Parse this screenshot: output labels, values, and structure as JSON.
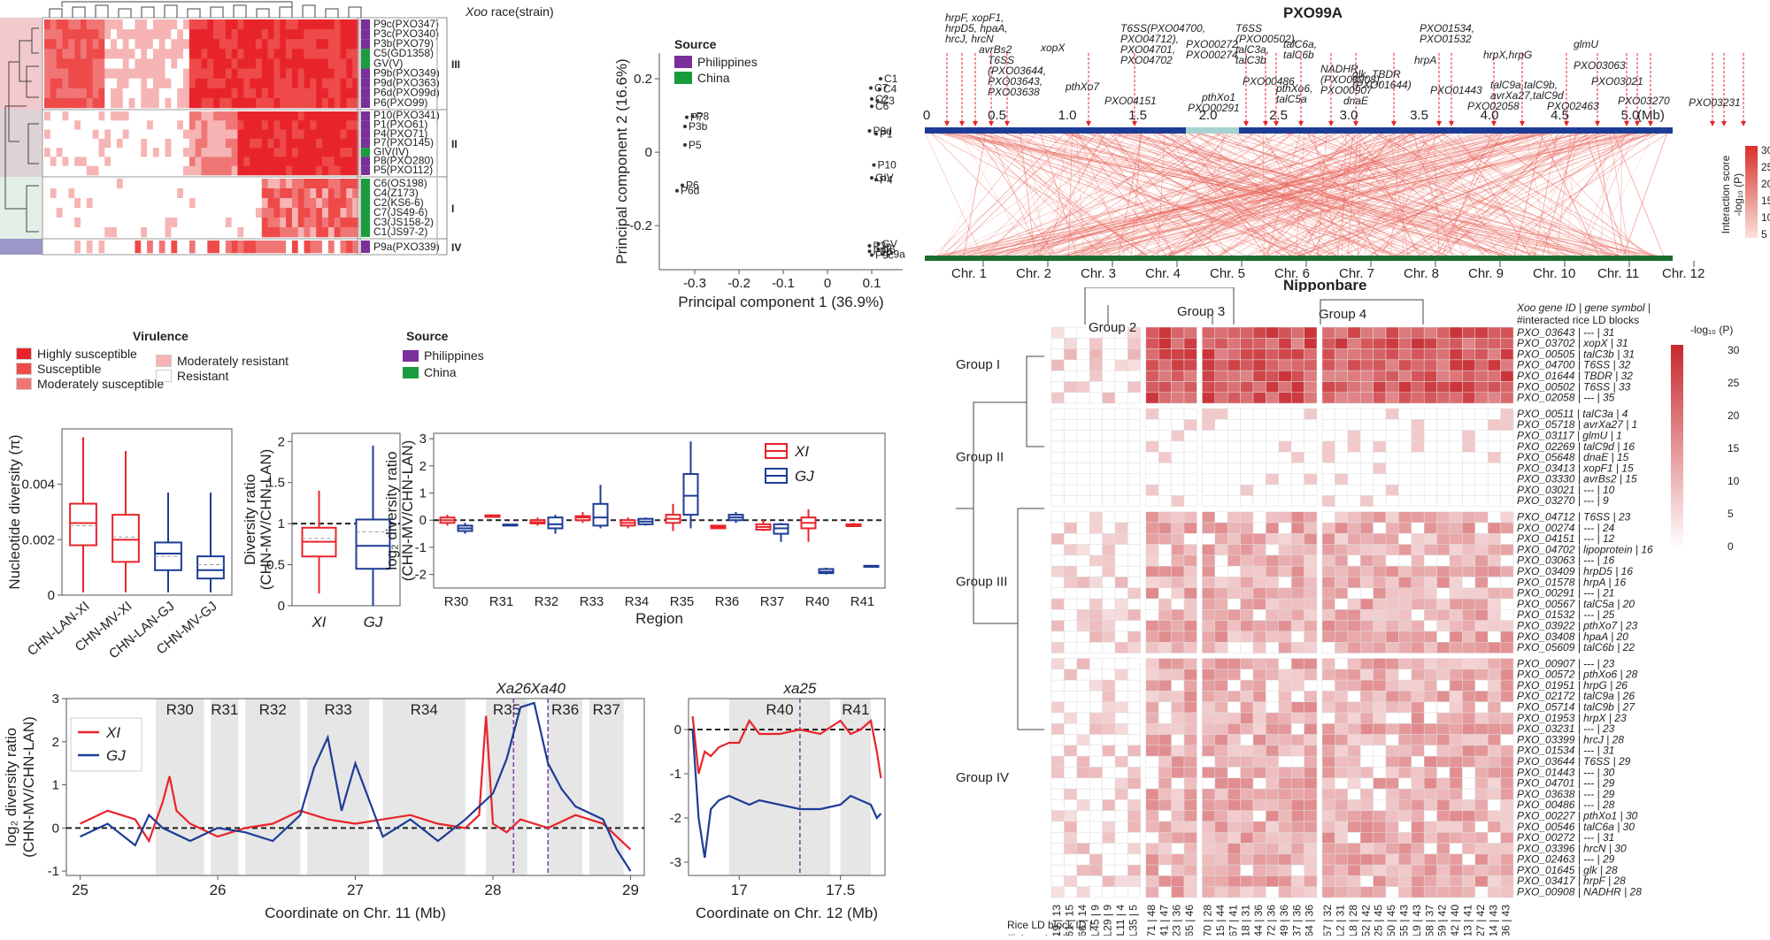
{
  "heatmap_panel": {
    "header": "race(strain)",
    "header_italic": "Xoo",
    "strains_III": [
      "P9c(PXO347)",
      "P3c(PXO340)",
      "P3b(PXO79)",
      "C5(GD1358)",
      "GV(V)",
      "P9b(PXO349)",
      "P9d(PXO363)",
      "P6d(PXO99d)",
      "P6(PXO99)"
    ],
    "strains_II": [
      "P10(PXO341)",
      "P1(PXO61)",
      "P4(PXO71)",
      "P7(PXO145)",
      "GIV(IV)",
      "P8(PXO280)",
      "P5(PXO112)"
    ],
    "strains_I": [
      "C6(OS198)",
      "C4(Z173)",
      "C2(KS6-6)",
      "C7(JS49-6)",
      "C3(JS158-2)",
      "C1(JS97-2)"
    ],
    "strains_IV": [
      "P9a(PXO339)"
    ],
    "groups": [
      "III",
      "II",
      "I",
      "IV"
    ],
    "virulence_title": "Virulence",
    "virulence_legend": [
      "Highly susceptible",
      "Susceptible",
      "Moderately susceptible",
      "Moderately resistant",
      "Resistant"
    ],
    "virulence_colors": [
      "#e8242b",
      "#ee4a4a",
      "#f07676",
      "#f6b4b4",
      "#ffffff"
    ],
    "source_title": "Source",
    "source_legend": [
      "Philippines",
      "China"
    ],
    "source_colors": [
      "#7a2f9a",
      "#1a9c3e"
    ]
  },
  "pca": {
    "legend_title": "Source",
    "legend": [
      "Philippines",
      "China"
    ],
    "xlabel": "Principal component 1 (36.9%)",
    "ylabel": "Principal component 2 (16.6%)",
    "xticks": [
      "-0.3",
      "-0.2",
      "-0.1",
      "0",
      "0.1"
    ],
    "yticks": [
      "0.2",
      "0",
      "-0.2"
    ]
  },
  "chart_data": [
    {
      "type": "scatter",
      "xlabel": "Principal component 1 (36.9%)",
      "ylabel": "Principal component 2 (16.6%)",
      "xlim": [
        -0.38,
        0.17
      ],
      "ylim": [
        -0.32,
        0.27
      ],
      "points": [
        {
          "label": "P7",
          "x": -0.318,
          "y": 0.095,
          "source": "Philippines"
        },
        {
          "label": "P8",
          "x": -0.305,
          "y": 0.098,
          "source": "Philippines"
        },
        {
          "label": "P3b",
          "x": -0.322,
          "y": 0.07,
          "source": "Philippines"
        },
        {
          "label": "P5",
          "x": -0.322,
          "y": 0.02,
          "source": "Philippines"
        },
        {
          "label": "P6",
          "x": -0.328,
          "y": -0.09,
          "source": "Philippines"
        },
        {
          "label": "P6d",
          "x": -0.34,
          "y": -0.105,
          "source": "Philippines"
        },
        {
          "label": "P9d",
          "x": 0.095,
          "y": 0.058,
          "source": "Philippines"
        },
        {
          "label": "P1",
          "x": 0.11,
          "y": 0.05,
          "source": "Philippines"
        },
        {
          "label": "C1",
          "x": 0.12,
          "y": 0.2,
          "source": "China"
        },
        {
          "label": "C7",
          "x": 0.098,
          "y": 0.175,
          "source": "China"
        },
        {
          "label": "C4",
          "x": 0.118,
          "y": 0.172,
          "source": "China"
        },
        {
          "label": "C2",
          "x": 0.1,
          "y": 0.145,
          "source": "China"
        },
        {
          "label": "C3",
          "x": 0.113,
          "y": 0.14,
          "source": "China"
        },
        {
          "label": "C6",
          "x": 0.1,
          "y": 0.125,
          "source": "China"
        },
        {
          "label": "P10",
          "x": 0.105,
          "y": -0.035,
          "source": "Philippines"
        },
        {
          "label": "GIV",
          "x": 0.1,
          "y": -0.07,
          "source": "China"
        },
        {
          "label": "P4",
          "x": 0.11,
          "y": -0.075,
          "source": "Philippines"
        },
        {
          "label": "GV",
          "x": 0.115,
          "y": -0.25,
          "source": "China"
        },
        {
          "label": "P3c",
          "x": 0.095,
          "y": -0.255,
          "source": "Philippines"
        },
        {
          "label": "C5",
          "x": 0.115,
          "y": -0.265,
          "source": "China"
        },
        {
          "label": "P9b",
          "x": 0.095,
          "y": -0.27,
          "source": "Philippines"
        },
        {
          "label": "P9c",
          "x": 0.1,
          "y": -0.28,
          "source": "Philippines"
        },
        {
          "label": "P9a",
          "x": 0.125,
          "y": -0.278,
          "source": "Philippines"
        }
      ]
    },
    {
      "type": "box",
      "ylabel": "Nucleotide diversity (π)",
      "categories": [
        "CHN-LAN-XI",
        "CHN-MV-XI",
        "CHN-LAN-GJ",
        "CHN-MV-GJ"
      ],
      "ylim": [
        0,
        0.006
      ],
      "boxes": [
        {
          "min": 0.0001,
          "q1": 0.0018,
          "median": 0.0026,
          "q3": 0.0033,
          "max": 0.0057,
          "mean": 0.0025
        },
        {
          "min": 0.0001,
          "q1": 0.0012,
          "median": 0.002,
          "q3": 0.0029,
          "max": 0.0052,
          "mean": 0.0021
        },
        {
          "min": 0.0001,
          "q1": 0.0009,
          "median": 0.0015,
          "q3": 0.0019,
          "max": 0.0037,
          "mean": 0.0014
        },
        {
          "min": 0.0001,
          "q1": 0.0006,
          "median": 0.0009,
          "q3": 0.0014,
          "max": 0.0037,
          "mean": 0.0011
        }
      ],
      "colors": [
        "#e8242b",
        "#e8242b",
        "#1d3c96",
        "#1d3c96"
      ]
    },
    {
      "type": "box",
      "ylabel": "Diversity ratio (CHN-MV/CHN-LAN)",
      "categories": [
        "XI",
        "GJ"
      ],
      "ylim": [
        0,
        2.1
      ],
      "boxes": [
        {
          "min": 0.15,
          "q1": 0.6,
          "median": 0.78,
          "q3": 0.95,
          "max": 1.4,
          "mean": 0.82
        },
        {
          "min": 0.0,
          "q1": 0.45,
          "median": 0.73,
          "q3": 1.05,
          "max": 1.95,
          "mean": 0.9
        }
      ]
    },
    {
      "type": "box",
      "ylabel": "log2 diversity ratio (CHN-MV/CHN-LAN)",
      "xlabel": "Region",
      "categories": [
        "R30",
        "R31",
        "R32",
        "R33",
        "R34",
        "R35",
        "R36",
        "R37",
        "R40",
        "R41"
      ],
      "legend": [
        "XI",
        "GJ"
      ],
      "ylim": [
        -2.5,
        3.2
      ],
      "series": [
        {
          "name": "XI",
          "boxes": [
            {
              "min": -0.2,
              "q1": -0.1,
              "median": 0.0,
              "q3": 0.1,
              "max": 0.2
            },
            {
              "min": 0.1,
              "q1": 0.12,
              "median": 0.15,
              "q3": 0.18,
              "max": 0.2
            },
            {
              "min": -0.2,
              "q1": -0.12,
              "median": -0.08,
              "q3": 0.0,
              "max": 0.1
            },
            {
              "min": -0.1,
              "q1": 0.0,
              "median": 0.1,
              "q3": 0.15,
              "max": 0.3
            },
            {
              "min": -0.3,
              "q1": -0.2,
              "median": -0.1,
              "q3": 0.0,
              "max": 0.1
            },
            {
              "min": -0.4,
              "q1": -0.1,
              "median": 0.05,
              "q3": 0.2,
              "max": 0.6
            },
            {
              "min": -0.3,
              "q1": -0.3,
              "median": -0.25,
              "q3": -0.2,
              "max": -0.2
            },
            {
              "min": -0.4,
              "q1": -0.35,
              "median": -0.25,
              "q3": -0.15,
              "max": 0.0
            },
            {
              "min": -0.8,
              "q1": -0.3,
              "median": -0.1,
              "q3": 0.1,
              "max": 0.4
            },
            {
              "min": -0.25,
              "q1": -0.22,
              "median": -0.18,
              "q3": -0.15,
              "max": -0.1
            }
          ]
        },
        {
          "name": "GJ",
          "boxes": [
            {
              "min": -0.5,
              "q1": -0.4,
              "median": -0.3,
              "q3": -0.2,
              "max": -0.1
            },
            {
              "min": -0.2,
              "q1": -0.2,
              "median": -0.18,
              "q3": -0.16,
              "max": -0.15
            },
            {
              "min": -0.5,
              "q1": -0.3,
              "median": -0.15,
              "q3": 0.1,
              "max": 0.2
            },
            {
              "min": -0.3,
              "q1": -0.2,
              "median": 0.1,
              "q3": 0.6,
              "max": 1.3
            },
            {
              "min": -0.2,
              "q1": -0.15,
              "median": -0.05,
              "q3": 0.05,
              "max": 0.1
            },
            {
              "min": -0.3,
              "q1": 0.2,
              "median": 0.9,
              "q3": 1.7,
              "max": 2.9
            },
            {
              "min": -0.1,
              "q1": 0.0,
              "median": 0.1,
              "q3": 0.2,
              "max": 0.3
            },
            {
              "min": -0.8,
              "q1": -0.5,
              "median": -0.3,
              "q3": -0.15,
              "max": -0.1
            },
            {
              "min": -2.0,
              "q1": -1.95,
              "median": -1.9,
              "q3": -1.8,
              "max": -1.75
            },
            {
              "min": -1.75,
              "q1": -1.72,
              "median": -1.7,
              "q3": -1.68,
              "max": -1.65
            }
          ]
        }
      ]
    },
    {
      "type": "line",
      "ylabel": "log2 diversity ratio (CHN-MV/CHN-LAN)",
      "xlabel": "Coordinate on Chr. 11 (Mb)",
      "xlim": [
        24.9,
        29.1
      ],
      "ylim": [
        -1.1,
        3.0
      ],
      "legend": [
        "XI",
        "GJ"
      ],
      "regions": [
        {
          "name": "R30",
          "start": 25.55,
          "end": 25.9
        },
        {
          "name": "R31",
          "start": 25.95,
          "end": 26.15
        },
        {
          "name": "R32",
          "start": 26.2,
          "end": 26.6
        },
        {
          "name": "R33",
          "start": 26.65,
          "end": 27.1
        },
        {
          "name": "R34",
          "start": 27.2,
          "end": 27.8
        },
        {
          "name": "R35",
          "start": 27.95,
          "end": 28.25
        },
        {
          "name": "R36",
          "start": 28.4,
          "end": 28.65
        },
        {
          "name": "R37",
          "start": 28.7,
          "end": 28.95
        }
      ],
      "markers": [
        {
          "name": "Xa26",
          "x": 28.15
        },
        {
          "name": "Xa40",
          "x": 28.4
        }
      ],
      "series": [
        {
          "name": "XI",
          "x": [
            25.0,
            25.2,
            25.4,
            25.5,
            25.6,
            25.65,
            25.7,
            25.8,
            26.0,
            26.2,
            26.4,
            26.6,
            26.8,
            27.0,
            27.2,
            27.4,
            27.6,
            27.8,
            27.9,
            27.95,
            28.0,
            28.1,
            28.2,
            28.4,
            28.6,
            28.8,
            28.9,
            29.0
          ],
          "y": [
            0.1,
            0.4,
            0.2,
            -0.3,
            0.6,
            1.2,
            0.4,
            0.1,
            -0.2,
            0.0,
            0.1,
            0.4,
            0.2,
            0.1,
            0.2,
            0.3,
            0.1,
            0.0,
            0.3,
            2.6,
            0.1,
            -0.1,
            0.2,
            0.0,
            0.3,
            0.1,
            -0.2,
            -0.5
          ]
        },
        {
          "name": "GJ",
          "x": [
            25.0,
            25.2,
            25.4,
            25.5,
            25.6,
            25.8,
            26.0,
            26.2,
            26.4,
            26.6,
            26.7,
            26.8,
            26.9,
            27.0,
            27.2,
            27.4,
            27.6,
            27.8,
            28.0,
            28.1,
            28.2,
            28.3,
            28.4,
            28.5,
            28.6,
            28.8,
            28.9,
            29.0
          ],
          "y": [
            -0.2,
            0.1,
            -0.4,
            0.3,
            0.0,
            -0.3,
            0.0,
            -0.1,
            -0.3,
            0.3,
            1.4,
            2.1,
            0.4,
            1.5,
            -0.2,
            0.2,
            -0.3,
            0.2,
            0.8,
            1.6,
            2.8,
            2.9,
            1.5,
            0.9,
            0.5,
            0.2,
            -0.5,
            -1.0
          ]
        }
      ]
    },
    {
      "type": "line",
      "xlabel": "Coordinate on Chr. 12 (Mb)",
      "xlim": [
        16.75,
        17.72
      ],
      "ylim": [
        -3.3,
        0.7
      ],
      "regions": [
        {
          "name": "R40",
          "start": 16.95,
          "end": 17.45
        },
        {
          "name": "R41",
          "start": 17.5,
          "end": 17.65
        }
      ],
      "markers": [
        {
          "name": "xa25",
          "x": 17.3
        }
      ],
      "series": [
        {
          "name": "XI",
          "x": [
            16.77,
            16.8,
            16.83,
            16.86,
            16.9,
            16.95,
            17.0,
            17.05,
            17.1,
            17.2,
            17.3,
            17.4,
            17.5,
            17.55,
            17.6,
            17.65,
            17.68,
            17.7
          ],
          "y": [
            0.3,
            -1.0,
            -0.5,
            -0.6,
            -0.4,
            -0.3,
            -0.3,
            0.2,
            -0.1,
            -0.1,
            0.0,
            -0.1,
            0.2,
            -0.1,
            0.0,
            0.2,
            -0.5,
            -1.1
          ]
        },
        {
          "name": "GJ",
          "x": [
            16.77,
            16.8,
            16.83,
            16.86,
            16.9,
            16.95,
            17.0,
            17.05,
            17.1,
            17.2,
            17.3,
            17.4,
            17.5,
            17.55,
            17.6,
            17.65,
            17.68,
            17.7
          ],
          "y": [
            0.0,
            -2.0,
            -2.9,
            -1.8,
            -1.6,
            -1.5,
            -1.6,
            -1.7,
            -1.6,
            -1.7,
            -1.8,
            -1.8,
            -1.7,
            -1.5,
            -1.6,
            -1.7,
            -2.0,
            -1.9
          ]
        }
      ]
    }
  ],
  "pxo99a": {
    "title": "PXO99A",
    "bottom_title": "Nipponbare",
    "mb_label": "(Mb)",
    "mb_ticks": [
      "0",
      "0.5",
      "1.0",
      "1.5",
      "2.0",
      "2.5",
      "3.0",
      "3.5",
      "4.0",
      "4.5",
      "5.0"
    ],
    "chromosomes": [
      "Chr. 1",
      "Chr. 2",
      "Chr. 3",
      "Chr. 4",
      "Chr. 5",
      "Chr. 6",
      "Chr. 7",
      "Chr. 8",
      "Chr. 9",
      "Chr. 10",
      "Chr. 11",
      "Chr. 12"
    ],
    "gene_labels": [
      "hrpF, xopF1,",
      "hrpD5, hpaA,",
      "hrcJ, hrcN",
      "avrBs2",
      "T6SS",
      "(PXO03644,",
      "PXO03643,",
      "PXO03638",
      "xopX",
      "pthXo7",
      "PXO04151",
      "T6SS(PXO04700,",
      "PXO04712),",
      "PXO04701,",
      "PXO04702",
      "PXO00272,",
      "PXO00274",
      "PXO00291",
      "pthXo1",
      "T6SS",
      "(PXO00502),",
      "talC3a,",
      "talC3b",
      "PXO00486",
      "talC6a,",
      "talC6b",
      "pthXo6,",
      "talC5a",
      "NADHR",
      "(PXO00908),",
      "PXO00907",
      "glk, TBDR",
      "(PXO01644)",
      "dnaE",
      "PXO01534,",
      "PXO01532",
      "hrpA",
      "PXO01443",
      "PXO02058",
      "hrpX,hrpG",
      "talC9a,talC9b,",
      "avrXa27,talC9d",
      "PXO02463",
      "glmU",
      "PXO03063",
      "PXO03021",
      "PXO03270",
      "PXO03231"
    ],
    "scale_title": "Interaction score",
    "scale_sub": "-log",
    "scale_ticks": [
      "30",
      "25",
      "20",
      "15",
      "10",
      "5"
    ]
  },
  "bigheat": {
    "groups_top": [
      "Group 1",
      "Group 2",
      "Group 3",
      "Group 4"
    ],
    "groups_left": [
      "Group I",
      "Group II",
      "Group III",
      "Group IV"
    ],
    "right_header": [
      "Xoo gene ID | gene symbol |",
      "#interacted rice LD blocks"
    ],
    "scale_title": "-log",
    "scale_ticks": [
      "30",
      "25",
      "20",
      "15",
      "10",
      "5",
      "0"
    ],
    "bottom_header": [
      "Rice LD block ID |",
      "#interacted Xoo genes"
    ],
    "genes_I": [
      "PXO_03643 | --- | 31",
      "PXO_03702 | xopX | 31",
      "PXO_00505 | talC3b | 31",
      "PXO_04700 | T6SS | 32",
      "PXO_01644 | TBDR | 32",
      "PXO_00502 | T6SS | 33",
      "PXO_02058 | --- | 35"
    ],
    "genes_II": [
      "PXO_00511 | talC3a | 4",
      "PXO_05718 | avrXa27 | 1",
      "PXO_03117 | glmU | 1",
      "PXO_02269 | talC9d | 16",
      "PXO_05648 | dnaE | 15",
      "PXO_03413 | xopF1 | 15",
      "PXO_03330 | avrBs2 | 15",
      "PXO_03021 | --- | 10",
      "PXO_03270 | --- | 9"
    ],
    "genes_III": [
      "PXO_04712 | T6SS | 23",
      "PXO_00274 | --- | 24",
      "PXO_04151 | --- | 12",
      "PXO_04702 | lipoprotein | 16",
      "PXO_03063 | --- | 16",
      "PXO_03409 | hrpD5 | 16",
      "PXO_01578 | hrpA | 16",
      "PXO_00291 | --- | 21",
      "PXO_00567 | talC5a | 20",
      "PXO_01532 | --- | 25",
      "PXO_03922 | pthXo7 | 23",
      "PXO_03408 | hpaA | 20",
      "PXO_05609 | talC6b | 22"
    ],
    "genes_IV": [
      "PXO_00907 | --- | 23",
      "PXO_00572 | pthXo6 | 28",
      "PXO_01951 | hrpG | 26",
      "PXO_02172 | talC9a | 26",
      "PXO_05714 | talC9b | 27",
      "PXO_01953 | hrpX | 23",
      "PXO_03231 | --- | 23",
      "PXO_03399 | hrcJ | 28",
      "PXO_01534 | --- | 31",
      "PXO_03644 | T6SS | 29",
      "PXO_01443 | --- | 30",
      "PXO_04701 | --- | 29",
      "PXO_03638 | --- | 29",
      "PXO_00486 | --- | 28",
      "PXO_00227 | pthXo1 | 30",
      "PXO_00546 | talC6a | 30",
      "PXO_00272 | --- | 31",
      "PXO_03396 | hrcN | 30",
      "PXO_02463 | --- | 29",
      "PXO_01645 | glk | 28",
      "PXO_03417 | hrpF | 28",
      "PXO_00908 | NADHR | 28"
    ],
    "blocks": [
      "L19 | 13",
      "L61 | 15",
      "L66 | 14",
      "L45 | 9",
      "L29 | 9",
      "L11 | 4",
      "L35 | 5",
      "L71 | 48",
      "L41 | 47",
      "L23 | 36",
      "L65 | 46",
      "L70 | 28",
      "L15 | 44",
      "L67 | 41",
      "L18 | 31",
      "L44 | 36",
      "L72 | 36",
      "L49 | 36",
      "L37 | 36",
      "L64 | 36",
      "L57 | 32",
      "L2 | 31",
      "L8 | 28",
      "L52 | 42",
      "L25 | 45",
      "L50 | 45",
      "L55 | 43",
      "L9 | 43",
      "L58 | 37",
      "L59 | 42",
      "L42 | 40",
      "L13 | 41",
      "L27 | 42",
      "L14 | 43",
      "L36 | 43"
    ]
  }
}
